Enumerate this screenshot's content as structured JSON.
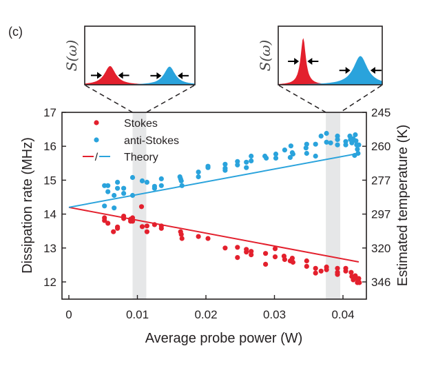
{
  "panel_label": "(c)",
  "chart_data": {
    "type": "scatter",
    "title": "",
    "xlabel": "Average probe power (W)",
    "ylabel": "Dissipation rate (MHz)",
    "ylabel_right": "Estimated temperature (K)",
    "xlim": [
      -0.0006,
      0.0423
    ],
    "ylim": [
      11.55,
      17
    ],
    "xticks": [
      0,
      0.01,
      0.02,
      0.03,
      0.04
    ],
    "xtick_labels": [
      "0",
      "0.01",
      "0.02",
      "0.03",
      "0.04"
    ],
    "yticks": [
      12,
      13,
      14,
      15,
      16,
      17
    ],
    "ytick_labels": [
      "12",
      "13",
      "14",
      "15",
      "16",
      "17"
    ],
    "yticks_right": [
      17,
      16,
      15,
      14,
      13,
      12
    ],
    "ytick_labels_right": [
      "245",
      "260",
      "277",
      "297",
      "320",
      "346"
    ],
    "grid": false,
    "legend_position": "top-left",
    "legend": [
      {
        "label": "Stokes",
        "kind": "marker",
        "color": "#e3202d"
      },
      {
        "label": "anti-Stokes",
        "kind": "marker",
        "color": "#2aa3dc"
      },
      {
        "label": "Theory",
        "kind": "lines",
        "colors": [
          "#e3202d",
          "#2aa3dc"
        ],
        "separator": "/"
      }
    ],
    "highlight_bands": [
      {
        "x_range": [
          0.0093,
          0.0113
        ],
        "color": "#e6e7e8"
      },
      {
        "x_range": [
          0.0375,
          0.0396
        ],
        "color": "#e6e7e8"
      }
    ],
    "series": [
      {
        "name": "Stokes",
        "kind": "scatter",
        "color": "#e3202d",
        "points": [
          [
            0.0052,
            13.89
          ],
          [
            0.0052,
            13.81
          ],
          [
            0.0057,
            13.73
          ],
          [
            0.0065,
            13.48
          ],
          [
            0.0071,
            13.58
          ],
          [
            0.0071,
            13.62
          ],
          [
            0.008,
            13.94
          ],
          [
            0.008,
            13.87
          ],
          [
            0.009,
            13.85
          ],
          [
            0.009,
            13.79
          ],
          [
            0.0093,
            13.89
          ],
          [
            0.0093,
            13.79
          ],
          [
            0.0106,
            14.22
          ],
          [
            0.0107,
            13.63
          ],
          [
            0.0114,
            13.65
          ],
          [
            0.0114,
            13.48
          ],
          [
            0.0125,
            13.69
          ],
          [
            0.0135,
            13.58
          ],
          [
            0.0135,
            13.65
          ],
          [
            0.0163,
            13.48
          ],
          [
            0.0164,
            13.4
          ],
          [
            0.0165,
            13.28
          ],
          [
            0.0189,
            13.34
          ],
          [
            0.0203,
            13.28
          ],
          [
            0.0228,
            13.0
          ],
          [
            0.0246,
            13.02
          ],
          [
            0.0246,
            12.72
          ],
          [
            0.0259,
            12.96
          ],
          [
            0.0259,
            12.88
          ],
          [
            0.0266,
            12.9
          ],
          [
            0.0266,
            12.8
          ],
          [
            0.0287,
            12.84
          ],
          [
            0.0287,
            12.52
          ],
          [
            0.0301,
            12.98
          ],
          [
            0.0301,
            12.74
          ],
          [
            0.0314,
            12.76
          ],
          [
            0.0315,
            12.66
          ],
          [
            0.0323,
            12.62
          ],
          [
            0.0326,
            12.7
          ],
          [
            0.0327,
            12.58
          ],
          [
            0.0347,
            12.62
          ],
          [
            0.0347,
            12.46
          ],
          [
            0.036,
            12.4
          ],
          [
            0.036,
            12.26
          ],
          [
            0.0368,
            12.32
          ],
          [
            0.0376,
            12.44
          ],
          [
            0.0376,
            12.36
          ],
          [
            0.0392,
            12.4
          ],
          [
            0.0392,
            12.28
          ],
          [
            0.0392,
            12.22
          ],
          [
            0.0404,
            12.4
          ],
          [
            0.0404,
            12.32
          ],
          [
            0.0412,
            12.28
          ],
          [
            0.0413,
            12.16
          ],
          [
            0.0415,
            12.06
          ],
          [
            0.0418,
            12.18
          ],
          [
            0.042,
            12.1
          ],
          [
            0.0421,
            11.98
          ],
          [
            0.0423,
            12.1
          ],
          [
            0.0424,
            11.98
          ]
        ]
      },
      {
        "name": "anti-Stokes",
        "kind": "scatter",
        "color": "#2aa3dc",
        "points": [
          [
            0.0052,
            14.84
          ],
          [
            0.0057,
            14.84
          ],
          [
            0.0057,
            14.66
          ],
          [
            0.0071,
            14.94
          ],
          [
            0.0071,
            14.76
          ],
          [
            0.008,
            14.76
          ],
          [
            0.008,
            14.61
          ],
          [
            0.0093,
            15.08
          ],
          [
            0.0093,
            14.55
          ],
          [
            0.0107,
            14.98
          ],
          [
            0.0114,
            14.94
          ],
          [
            0.0125,
            14.76
          ],
          [
            0.0125,
            14.82
          ],
          [
            0.0135,
            15.04
          ],
          [
            0.0135,
            14.84
          ],
          [
            0.0066,
            14.55
          ],
          [
            0.0052,
            14.24
          ],
          [
            0.0066,
            14.18
          ],
          [
            0.0162,
            15.1
          ],
          [
            0.0163,
            15.04
          ],
          [
            0.0164,
            14.98
          ],
          [
            0.0165,
            14.84
          ],
          [
            0.0189,
            15.24
          ],
          [
            0.0189,
            15.1
          ],
          [
            0.0203,
            15.41
          ],
          [
            0.0203,
            15.37
          ],
          [
            0.0228,
            15.47
          ],
          [
            0.0228,
            15.35
          ],
          [
            0.0228,
            15.29
          ],
          [
            0.0246,
            15.55
          ],
          [
            0.0246,
            15.45
          ],
          [
            0.0259,
            15.53
          ],
          [
            0.0259,
            15.37
          ],
          [
            0.0266,
            15.71
          ],
          [
            0.0266,
            15.57
          ],
          [
            0.0286,
            15.71
          ],
          [
            0.0288,
            15.65
          ],
          [
            0.0302,
            15.77
          ],
          [
            0.0302,
            15.65
          ],
          [
            0.0315,
            15.89
          ],
          [
            0.0324,
            16.01
          ],
          [
            0.0326,
            15.81
          ],
          [
            0.0327,
            15.77
          ],
          [
            0.0323,
            15.67
          ],
          [
            0.0346,
            15.95
          ],
          [
            0.0347,
            16.06
          ],
          [
            0.0347,
            15.79
          ],
          [
            0.036,
            16.06
          ],
          [
            0.036,
            15.71
          ],
          [
            0.0368,
            16.3
          ],
          [
            0.0376,
            16.38
          ],
          [
            0.0376,
            16.12
          ],
          [
            0.0382,
            16.1
          ],
          [
            0.0392,
            16.3
          ],
          [
            0.0392,
            16.2
          ],
          [
            0.0392,
            16.04
          ],
          [
            0.0404,
            16.14
          ],
          [
            0.0404,
            16.04
          ],
          [
            0.041,
            16.3
          ],
          [
            0.0411,
            16.2
          ],
          [
            0.0413,
            16.1
          ],
          [
            0.0415,
            16.22
          ],
          [
            0.0418,
            16.34
          ],
          [
            0.0419,
            16.16
          ],
          [
            0.042,
            16.04
          ],
          [
            0.0421,
            15.91
          ],
          [
            0.0422,
            15.79
          ],
          [
            0.0417,
            15.73
          ],
          [
            0.0423,
            16.04
          ]
        ]
      },
      {
        "name": "Theory (Stokes)",
        "kind": "line",
        "color": "#e3202d",
        "points": [
          [
            0,
            14.2
          ],
          [
            0.0423,
            12.59
          ]
        ]
      },
      {
        "name": "Theory (anti-Stokes)",
        "kind": "line",
        "color": "#2aa3dc",
        "points": [
          [
            0,
            14.2
          ],
          [
            0.0423,
            15.79
          ]
        ]
      }
    ],
    "insets": [
      {
        "name": "spectrum-low-power",
        "ylabel": "S(ω)",
        "linked_band": 0,
        "peaks": [
          {
            "name": "Stokes",
            "color": "#e3202d",
            "center": 0.23,
            "relative_height": 0.32,
            "relative_width": 0.09
          },
          {
            "name": "anti-Stokes",
            "color": "#2aa3dc",
            "center": 0.77,
            "relative_height": 0.31,
            "relative_width": 0.09
          }
        ]
      },
      {
        "name": "spectrum-high-power",
        "ylabel": "S(ω)",
        "linked_band": 1,
        "peaks": [
          {
            "name": "Stokes",
            "color": "#e3202d",
            "center": 0.24,
            "relative_height": 0.8,
            "relative_width": 0.045
          },
          {
            "name": "anti-Stokes",
            "color": "#2aa3dc",
            "center": 0.79,
            "relative_height": 0.49,
            "relative_width": 0.12
          }
        ]
      }
    ]
  }
}
